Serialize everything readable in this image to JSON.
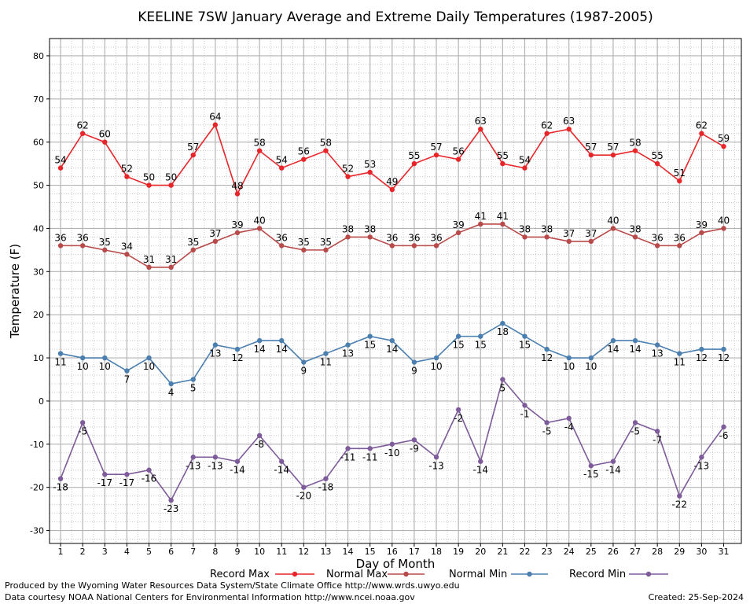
{
  "colors": {
    "record_max": "#e8262a",
    "normal_max": "#b84a4a",
    "normal_min": "#4a7fb0",
    "record_min": "#7e5b9a",
    "grid_major": "#b3b3b3",
    "grid_minor": "#c8c8c8"
  },
  "footer": {
    "produced": "Produced by the Wyoming Water Resources Data System/State Climate Office http://www.wrds.uwyo.edu",
    "courtesy": "Data courtesy NOAA National Centers for Environmental Information http://www.ncei.noaa.gov",
    "created": "Created:  25-Sep-2024"
  },
  "chart_data": {
    "type": "line",
    "title": "KEELINE 7SW January Average and Extreme Daily Temperatures (1987-2005)",
    "xlabel": "Day of Month",
    "ylabel": "Temperature (F)",
    "ylim": [
      -33,
      84
    ],
    "yticks": [
      -30,
      -20,
      -10,
      0,
      10,
      20,
      30,
      40,
      50,
      60,
      70,
      80
    ],
    "grid": true,
    "legend_placement": "bottom",
    "x": [
      1,
      2,
      3,
      4,
      5,
      6,
      7,
      8,
      9,
      10,
      11,
      12,
      13,
      14,
      15,
      16,
      17,
      18,
      19,
      20,
      21,
      22,
      23,
      24,
      25,
      26,
      27,
      28,
      29,
      30,
      31
    ],
    "series": [
      {
        "name": "Record Max",
        "color_key": "record_max",
        "label_pos": "above",
        "values": [
          54,
          62,
          60,
          52,
          50,
          50,
          57,
          64,
          48,
          58,
          54,
          56,
          58,
          52,
          53,
          49,
          55,
          57,
          56,
          63,
          55,
          54,
          62,
          63,
          57,
          57,
          58,
          55,
          51,
          62,
          59
        ]
      },
      {
        "name": "Normal Max",
        "color_key": "normal_max",
        "label_pos": "above",
        "values": [
          36,
          36,
          35,
          34,
          31,
          31,
          35,
          37,
          39,
          40,
          36,
          35,
          35,
          38,
          38,
          36,
          36,
          36,
          39,
          41,
          41,
          38,
          38,
          37,
          37,
          40,
          38,
          36,
          36,
          39,
          40
        ]
      },
      {
        "name": "Normal Min",
        "color_key": "normal_min",
        "label_pos": "below",
        "values": [
          11,
          10,
          10,
          7,
          10,
          4,
          5,
          13,
          12,
          14,
          14,
          9,
          11,
          13,
          15,
          14,
          9,
          10,
          15,
          15,
          18,
          15,
          12,
          10,
          10,
          14,
          14,
          13,
          11,
          12,
          12
        ]
      },
      {
        "name": "Record Min",
        "color_key": "record_min",
        "label_pos": "below",
        "values": [
          -18,
          -5,
          -17,
          -17,
          -16,
          -23,
          -13,
          -13,
          -14,
          -8,
          -14,
          -20,
          -18,
          -11,
          -11,
          -10,
          -9,
          -13,
          -2,
          -14,
          5,
          -1,
          -5,
          -4,
          -15,
          -14,
          -5,
          -7,
          -22,
          -13,
          -6
        ]
      }
    ]
  }
}
